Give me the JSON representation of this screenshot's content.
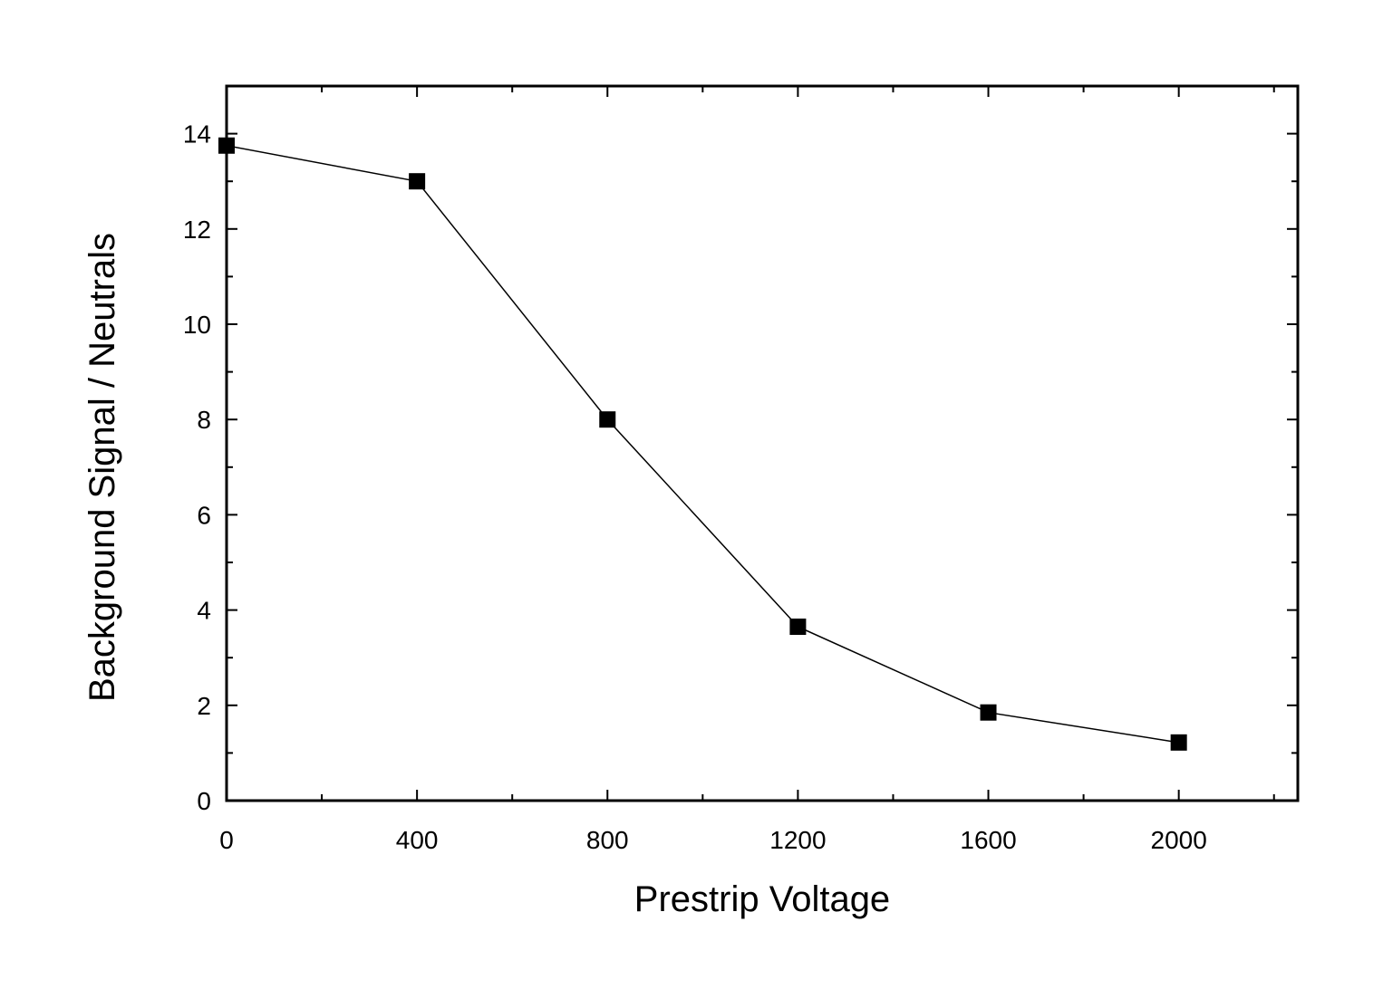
{
  "chart_data": {
    "type": "line",
    "title": "",
    "xlabel": "Prestrip Voltage",
    "ylabel": "Background Signal / Neutrals",
    "xlim": [
      0,
      2250
    ],
    "ylim": [
      0,
      15
    ],
    "x_ticks": [
      0,
      400,
      800,
      1200,
      1600,
      2000
    ],
    "x_tick_labels": [
      "0",
      "400",
      "800",
      "1200",
      "1600",
      "2000"
    ],
    "x_minor_step": 200,
    "y_ticks": [
      0,
      2,
      4,
      6,
      8,
      10,
      12,
      14
    ],
    "y_tick_labels": [
      "0",
      "2",
      "4",
      "6",
      "8",
      "10",
      "12",
      "14"
    ],
    "y_minor_step": 1,
    "grid": false,
    "legend": "none",
    "marker": "square",
    "series": [
      {
        "color": "#000000",
        "x": [
          0,
          400,
          800,
          1200,
          1600,
          2000
        ],
        "y": [
          13.75,
          13.0,
          8.0,
          3.65,
          1.85,
          1.22
        ]
      }
    ]
  }
}
